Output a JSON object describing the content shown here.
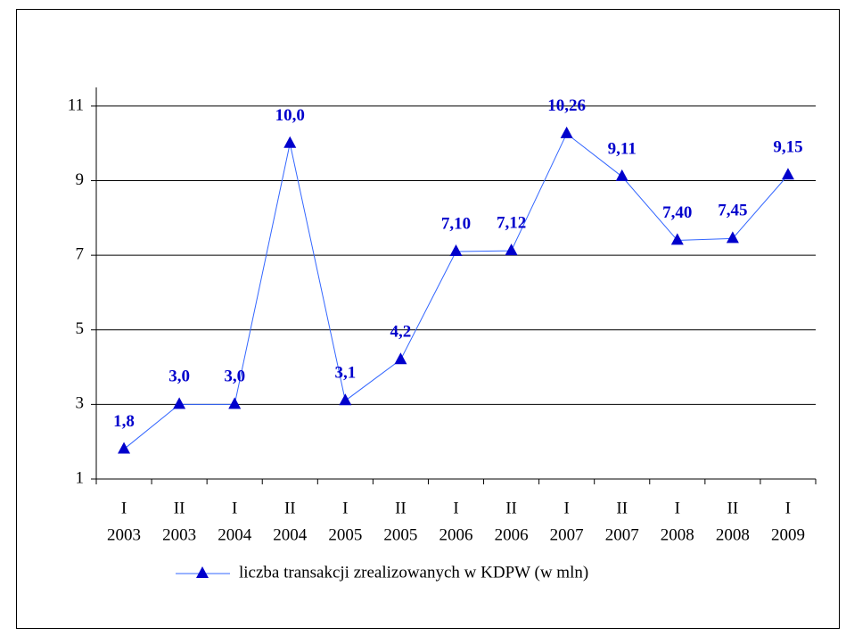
{
  "chart_data": {
    "type": "line",
    "categories": [
      [
        "I",
        "2003"
      ],
      [
        "II",
        "2003"
      ],
      [
        "I",
        "2004"
      ],
      [
        "II",
        "2004"
      ],
      [
        "I",
        "2005"
      ],
      [
        "II",
        "2005"
      ],
      [
        "I",
        "2006"
      ],
      [
        "II",
        "2006"
      ],
      [
        "I",
        "2007"
      ],
      [
        "II",
        "2007"
      ],
      [
        "I",
        "2008"
      ],
      [
        "II",
        "2008"
      ],
      [
        "I",
        "2009"
      ]
    ],
    "series": [
      {
        "name": "liczba transakcji zrealizowanych w KDPW (w mln)",
        "color": "#3366ff",
        "marker_color": "#0000cc",
        "values": [
          1.8,
          3.0,
          3.0,
          10.0,
          3.1,
          4.2,
          7.1,
          7.12,
          10.26,
          9.11,
          7.4,
          7.45,
          9.15
        ],
        "value_labels": [
          "1,8",
          "3,0",
          "3,0",
          "10,0",
          "3,1",
          "4,2",
          "7,10",
          "7,12",
          "10,26",
          "9,11",
          "7,40",
          "7,45",
          "9,15"
        ]
      }
    ],
    "ylim": [
      1,
      11.5
    ],
    "yticks": [
      1,
      3,
      5,
      7,
      9,
      11
    ],
    "grid": true,
    "legend": "bottom"
  }
}
